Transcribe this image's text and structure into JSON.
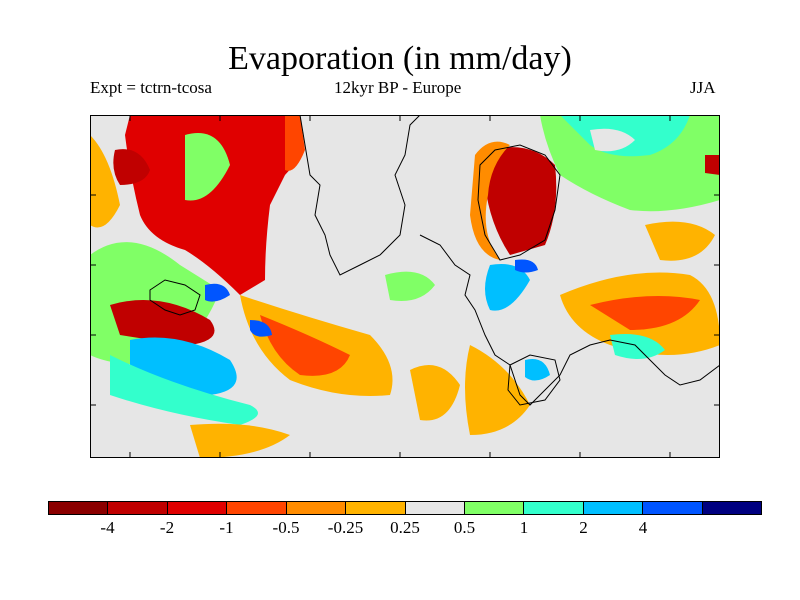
{
  "title": "Evaporation (in mm/day)",
  "subtitle_left": "Expt = tctrn-tcosa",
  "subtitle_center": "12kyr BP - Europe",
  "subtitle_right": "JJA",
  "colorbar": {
    "colors": [
      "#8b0000",
      "#c00000",
      "#e00000",
      "#ff4500",
      "#ff8c00",
      "#ffb300",
      "#e6e6e6",
      "#80ff66",
      "#33ffcc",
      "#00bfff",
      "#0055ff",
      "#000080"
    ],
    "labels": [
      "-4",
      "-2",
      "-1",
      "-0.5",
      "-0.25",
      "0.25",
      "0.5",
      "1",
      "2",
      "4"
    ]
  }
}
